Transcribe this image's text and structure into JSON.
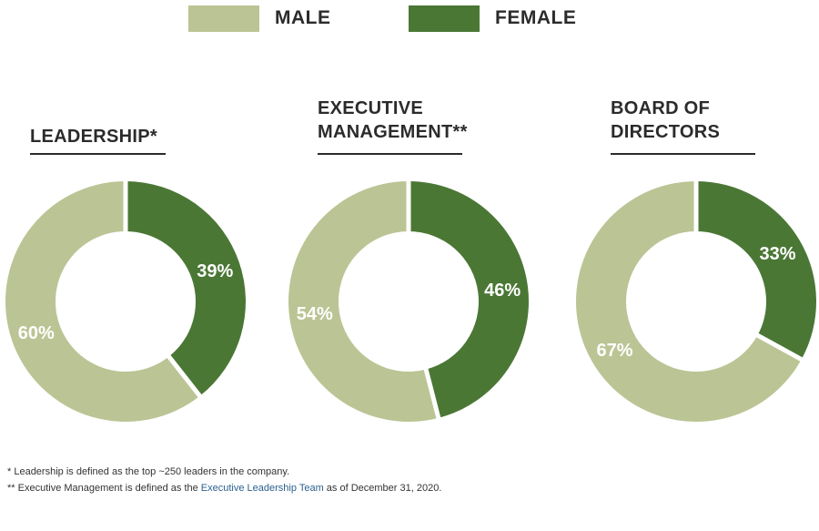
{
  "legend": [
    {
      "label": "MALE",
      "color": "#bbc494"
    },
    {
      "label": "FEMALE",
      "color": "#4b7735"
    }
  ],
  "chart_data": [
    {
      "type": "pie",
      "title": "LEADERSHIP*",
      "categories": [
        "Female",
        "Male"
      ],
      "values": [
        39,
        60
      ],
      "labels": [
        "39%",
        "60%"
      ],
      "colors": [
        "#4b7735",
        "#bbc494"
      ]
    },
    {
      "type": "pie",
      "title": "EXECUTIVE\nMANAGEMENT**",
      "categories": [
        "Female",
        "Male"
      ],
      "values": [
        46,
        54
      ],
      "labels": [
        "46%",
        "54%"
      ],
      "colors": [
        "#4b7735",
        "#bbc494"
      ]
    },
    {
      "type": "pie",
      "title": "BOARD OF\nDIRECTORS",
      "categories": [
        "Female",
        "Male"
      ],
      "values": [
        33,
        67
      ],
      "labels": [
        "33%",
        "67%"
      ],
      "colors": [
        "#4b7735",
        "#bbc494"
      ]
    }
  ],
  "footnotes": {
    "note1": "* Leadership is defined as the top ~250 leaders in the company.",
    "note2_prefix": "** Executive Management is defined as the ",
    "note2_link": "Executive Leadership Team",
    "note2_suffix": " as of December 31, 2020."
  }
}
